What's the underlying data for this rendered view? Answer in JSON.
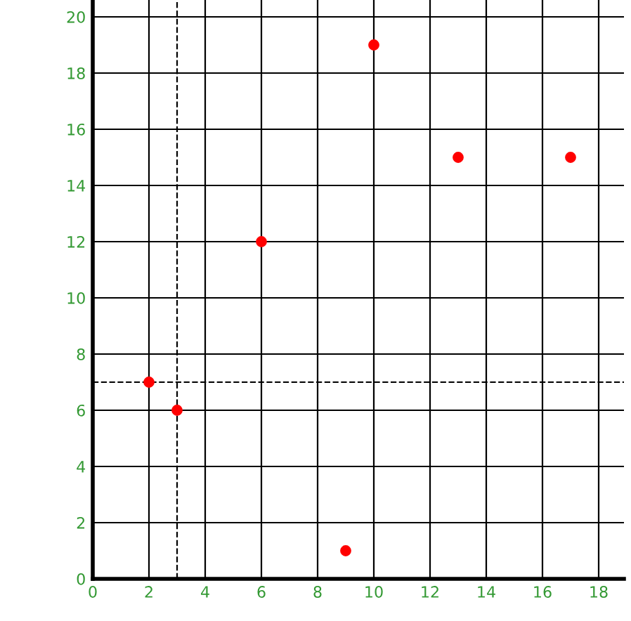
{
  "chart_data": {
    "type": "scatter",
    "x": [
      2,
      3,
      6,
      9,
      10,
      13,
      17
    ],
    "values": [
      7,
      6,
      12,
      1,
      19,
      15,
      15
    ],
    "color": "#ff0000",
    "marker": "circle",
    "xlim": [
      0,
      18.9
    ],
    "ylim": [
      0,
      20.6
    ],
    "xticks": [
      0,
      2,
      4,
      6,
      8,
      10,
      12,
      14,
      16,
      18
    ],
    "yticks": [
      0,
      2,
      4,
      6,
      8,
      10,
      12,
      14,
      16,
      18,
      20
    ],
    "grid": true,
    "ref_lines": [
      {
        "axis": "x",
        "value": 3,
        "color": "#000000",
        "line_style": "dashed"
      },
      {
        "axis": "y",
        "value": 7,
        "color": "#000000",
        "line_style": "dashed"
      }
    ]
  }
}
